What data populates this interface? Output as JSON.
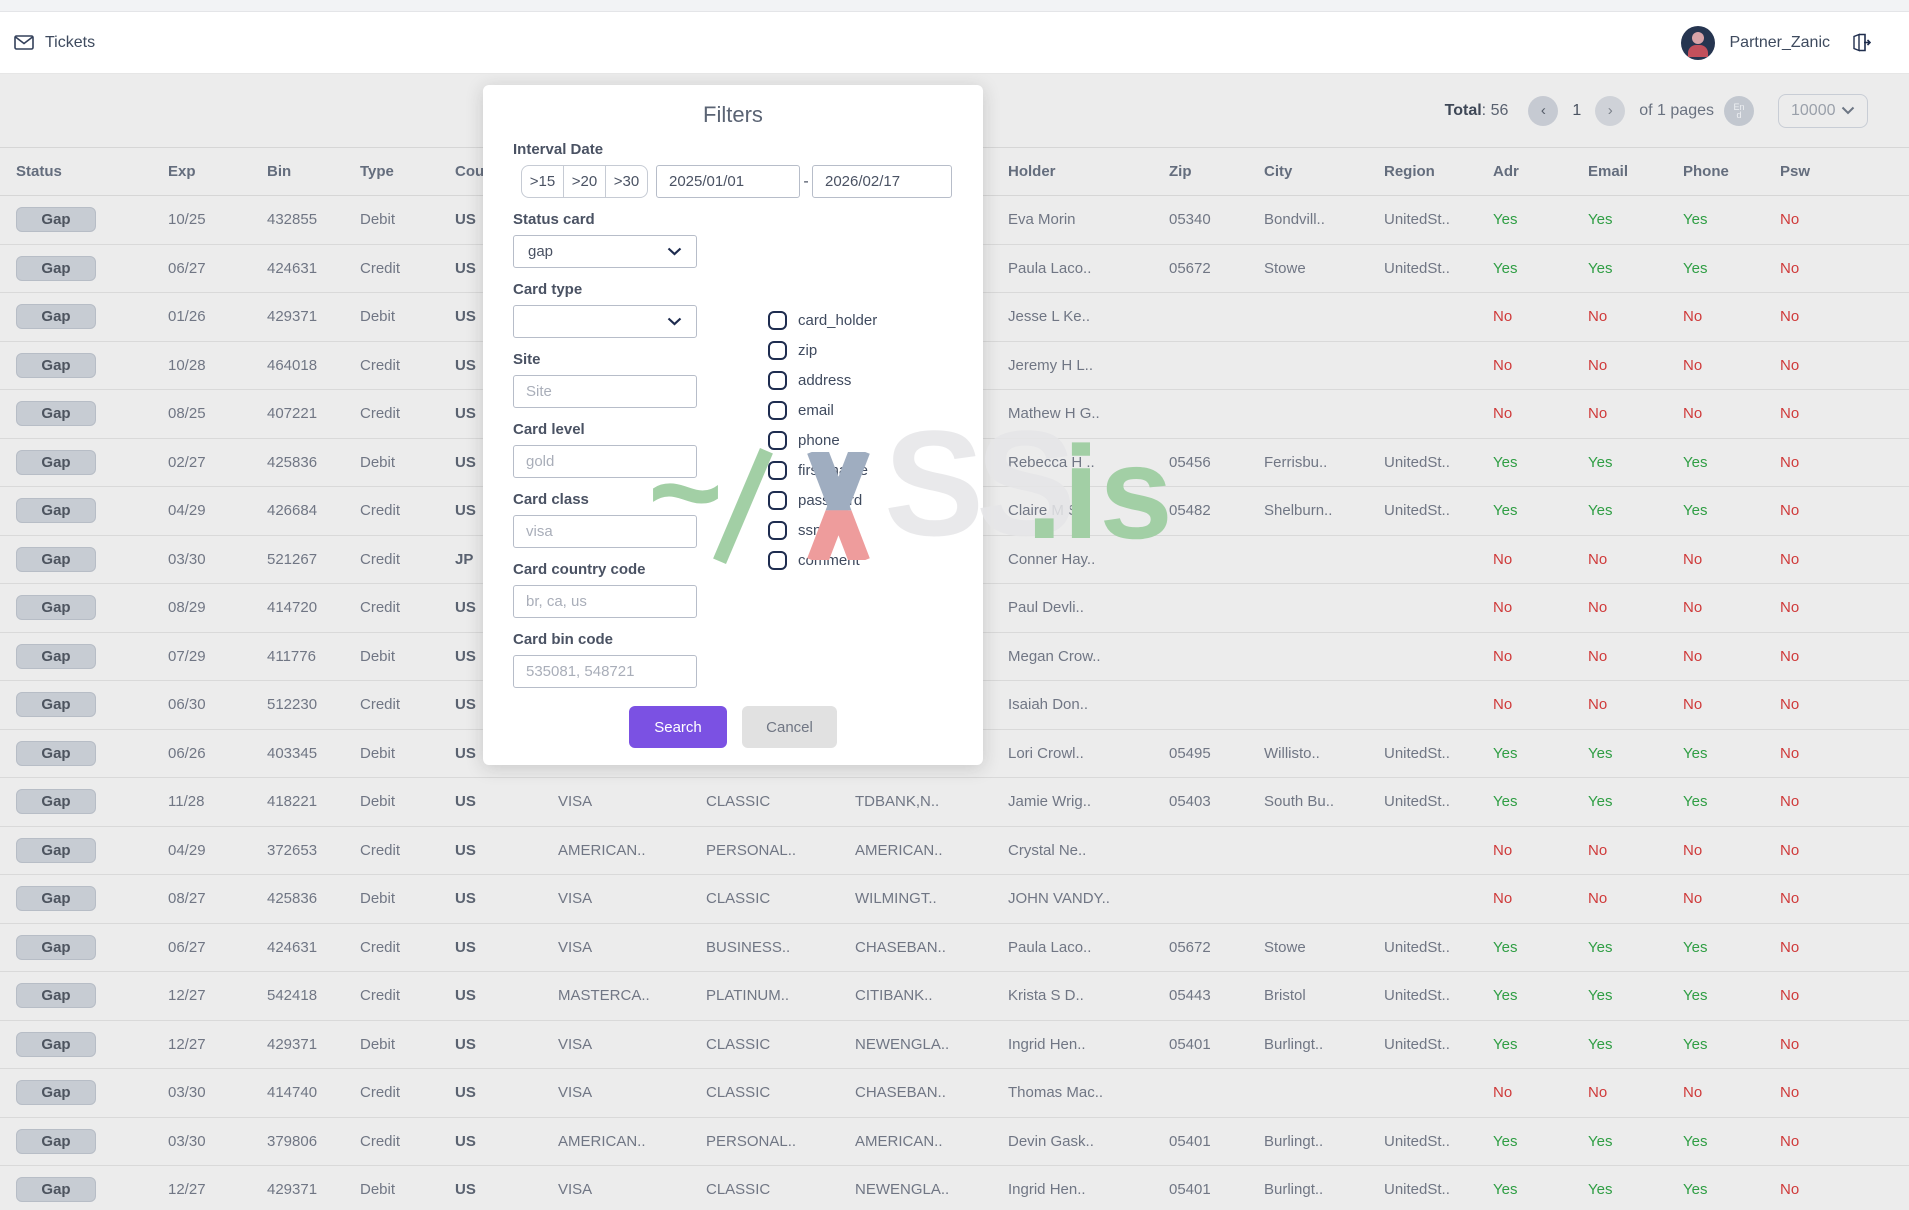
{
  "topbar": {
    "tickets_label": "Tickets",
    "username": "Partner_Zanic"
  },
  "pagination": {
    "total_label": "Total",
    "total_value": "56",
    "prev_glyph": "‹",
    "next_glyph": "›",
    "current_page": "1",
    "pages_text": "of 1 pages",
    "end_badge": "End",
    "page_size": "10000"
  },
  "modal": {
    "title": "Filters",
    "interval_label": "Interval Date",
    "quick_buttons": [
      ">15",
      ">20",
      ">30"
    ],
    "date_from": "2025/01/01",
    "date_separator": "-",
    "date_to": "2026/02/17",
    "fields": {
      "status_card": {
        "label": "Status card",
        "value": "gap"
      },
      "card_type": {
        "label": "Card type",
        "value": ""
      },
      "site": {
        "label": "Site",
        "placeholder": "Site"
      },
      "card_level": {
        "label": "Card level",
        "placeholder": "gold"
      },
      "card_class": {
        "label": "Card class",
        "placeholder": "visa"
      },
      "card_country_code": {
        "label": "Card country code",
        "placeholder": "br, ca, us"
      },
      "card_bin_code": {
        "label": "Card bin code",
        "placeholder": "535081, 548721"
      }
    },
    "checkboxes": [
      "card_holder",
      "zip",
      "address",
      "email",
      "phone",
      "first_name",
      "password",
      "ssn",
      "comment"
    ],
    "search_label": "Search",
    "cancel_label": "Cancel"
  },
  "watermark": {
    "tilde": "~",
    "ss": "SS",
    "is": ".is"
  },
  "table": {
    "headers": [
      "Status",
      "Exp",
      "Bin",
      "Type",
      "Cou",
      "",
      "",
      "",
      "Holder",
      "Zip",
      "City",
      "Region",
      "Adr",
      "Email",
      "Phone",
      "Psw"
    ],
    "rows": [
      [
        "Gap",
        "10/25",
        "432855",
        "Debit",
        "US",
        "",
        "",
        "",
        "Eva Morin",
        "05340",
        "Bondvill..",
        "UnitedSt..",
        "Yes",
        "Yes",
        "Yes",
        "No"
      ],
      [
        "Gap",
        "06/27",
        "424631",
        "Credit",
        "US",
        "",
        "",
        "",
        "Paula Laco..",
        "05672",
        "Stowe",
        "UnitedSt..",
        "Yes",
        "Yes",
        "Yes",
        "No"
      ],
      [
        "Gap",
        "01/26",
        "429371",
        "Debit",
        "US",
        "",
        "",
        "",
        "Jesse L Ke..",
        "",
        "",
        "",
        "No",
        "No",
        "No",
        "No"
      ],
      [
        "Gap",
        "10/28",
        "464018",
        "Credit",
        "US",
        "",
        "",
        "",
        "Jeremy H L..",
        "",
        "",
        "",
        "No",
        "No",
        "No",
        "No"
      ],
      [
        "Gap",
        "08/25",
        "407221",
        "Credit",
        "US",
        "",
        "",
        "",
        "Mathew H G..",
        "",
        "",
        "",
        "No",
        "No",
        "No",
        "No"
      ],
      [
        "Gap",
        "02/27",
        "425836",
        "Debit",
        "US",
        "",
        "",
        "",
        "Rebecca H ..",
        "05456",
        "Ferrisbu..",
        "UnitedSt..",
        "Yes",
        "Yes",
        "Yes",
        "No"
      ],
      [
        "Gap",
        "04/29",
        "426684",
        "Credit",
        "US",
        "",
        "",
        "",
        "Claire M S..",
        "05482",
        "Shelburn..",
        "UnitedSt..",
        "Yes",
        "Yes",
        "Yes",
        "No"
      ],
      [
        "Gap",
        "03/30",
        "521267",
        "Credit",
        "JP",
        "",
        "",
        "",
        "Conner Hay..",
        "",
        "",
        "",
        "No",
        "No",
        "No",
        "No"
      ],
      [
        "Gap",
        "08/29",
        "414720",
        "Credit",
        "US",
        "",
        "",
        "",
        "Paul Devli..",
        "",
        "",
        "",
        "No",
        "No",
        "No",
        "No"
      ],
      [
        "Gap",
        "07/29",
        "411776",
        "Debit",
        "US",
        "",
        "",
        "",
        "Megan Crow..",
        "",
        "",
        "",
        "No",
        "No",
        "No",
        "No"
      ],
      [
        "Gap",
        "06/30",
        "512230",
        "Credit",
        "US",
        "",
        "",
        "",
        "Isaiah Don..",
        "",
        "",
        "",
        "No",
        "No",
        "No",
        "No"
      ],
      [
        "Gap",
        "06/26",
        "403345",
        "Debit",
        "US",
        "",
        "",
        "",
        "Lori Crowl..",
        "05495",
        "Willisto..",
        "UnitedSt..",
        "Yes",
        "Yes",
        "Yes",
        "No"
      ],
      [
        "Gap",
        "11/28",
        "418221",
        "Debit",
        "US",
        "VISA",
        "CLASSIC",
        "TDBANK,N..",
        "Jamie Wrig..",
        "05403",
        "South Bu..",
        "UnitedSt..",
        "Yes",
        "Yes",
        "Yes",
        "No"
      ],
      [
        "Gap",
        "04/29",
        "372653",
        "Credit",
        "US",
        "AMERICAN..",
        "PERSONAL..",
        "AMERICAN..",
        "Crystal Ne..",
        "",
        "",
        "",
        "No",
        "No",
        "No",
        "No"
      ],
      [
        "Gap",
        "08/27",
        "425836",
        "Debit",
        "US",
        "VISA",
        "CLASSIC",
        "WILMINGT..",
        "JOHN VANDY..",
        "",
        "",
        "",
        "No",
        "No",
        "No",
        "No"
      ],
      [
        "Gap",
        "06/27",
        "424631",
        "Credit",
        "US",
        "VISA",
        "BUSINESS..",
        "CHASEBAN..",
        "Paula Laco..",
        "05672",
        "Stowe",
        "UnitedSt..",
        "Yes",
        "Yes",
        "Yes",
        "No"
      ],
      [
        "Gap",
        "12/27",
        "542418",
        "Credit",
        "US",
        "MASTERCA..",
        "PLATINUM..",
        "CITIBANK..",
        "Krista S D..",
        "05443",
        "Bristol",
        "UnitedSt..",
        "Yes",
        "Yes",
        "Yes",
        "No"
      ],
      [
        "Gap",
        "12/27",
        "429371",
        "Debit",
        "US",
        "VISA",
        "CLASSIC",
        "NEWENGLA..",
        "Ingrid Hen..",
        "05401",
        "Burlingt..",
        "UnitedSt..",
        "Yes",
        "Yes",
        "Yes",
        "No"
      ],
      [
        "Gap",
        "03/30",
        "414740",
        "Credit",
        "US",
        "VISA",
        "CLASSIC",
        "CHASEBAN..",
        "Thomas Mac..",
        "",
        "",
        "",
        "No",
        "No",
        "No",
        "No"
      ],
      [
        "Gap",
        "03/30",
        "379806",
        "Credit",
        "US",
        "AMERICAN..",
        "PERSONAL..",
        "AMERICAN..",
        "Devin Gask..",
        "05401",
        "Burlingt..",
        "UnitedSt..",
        "Yes",
        "Yes",
        "Yes",
        "No"
      ],
      [
        "Gap",
        "12/27",
        "429371",
        "Debit",
        "US",
        "VISA",
        "CLASSIC",
        "NEWENGLA..",
        "Ingrid Hen..",
        "05401",
        "Burlingt..",
        "UnitedSt..",
        "Yes",
        "Yes",
        "Yes",
        "No"
      ]
    ]
  },
  "colors": {
    "accent": "#7b51e3",
    "yes": "#2f9e44",
    "no": "#cf3a3a",
    "watermark_green": "#a2cfa5"
  }
}
